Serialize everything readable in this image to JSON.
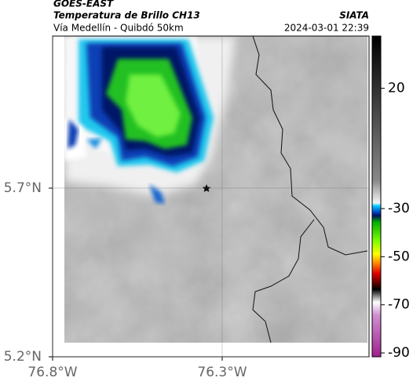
{
  "header": {
    "title": "GOES-EAST",
    "subtitle": "Temperatura de Brillo CH13",
    "route": "Vía Medellín - Quibdó 50km",
    "source": "SIATA",
    "timestamp": "2024-03-01 22:39"
  },
  "map": {
    "xlim": [
      -76.8,
      -75.867
    ],
    "ylim": [
      5.2,
      6.151
    ],
    "xticks": [
      {
        "value": -76.8,
        "label": "76.8°W"
      },
      {
        "value": -76.3,
        "label": "76.3°W"
      }
    ],
    "yticks": [
      {
        "value": 5.7,
        "label": "5.7°N"
      },
      {
        "value": 5.2,
        "label": "5.2°N"
      }
    ]
  },
  "colorbar": {
    "clim": [
      -91.6,
      41.7
    ],
    "ticks": [
      20,
      -30,
      -50,
      -70,
      -90
    ]
  }
}
